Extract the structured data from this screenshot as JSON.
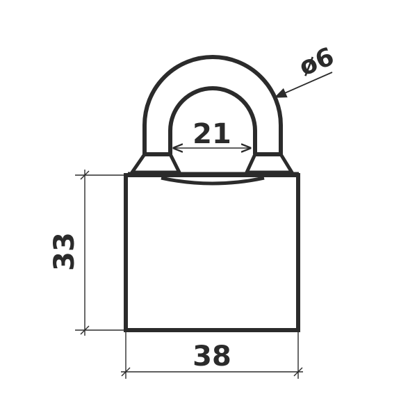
{
  "dimensions": {
    "shackle_inner_width": "21",
    "shackle_diameter": "ø6",
    "body_height": "33",
    "body_width": "38"
  },
  "colors": {
    "stroke": "#2b2b2b",
    "background": "#ffffff"
  }
}
